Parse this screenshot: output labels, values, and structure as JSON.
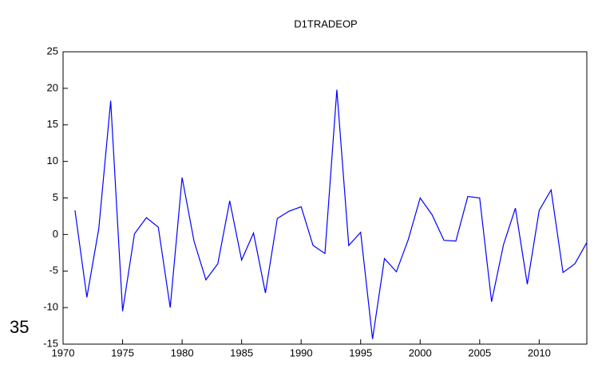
{
  "chart_data": {
    "type": "line",
    "title": "D1TRADEOP",
    "annotations": [
      "35"
    ],
    "x": [
      1971,
      1972,
      1973,
      1974,
      1975,
      1976,
      1977,
      1978,
      1979,
      1980,
      1981,
      1982,
      1983,
      1984,
      1985,
      1986,
      1987,
      1988,
      1989,
      1990,
      1991,
      1992,
      1993,
      1994,
      1995,
      1996,
      1997,
      1998,
      1999,
      2000,
      2001,
      2002,
      2003,
      2004,
      2005,
      2006,
      2007,
      2008,
      2009,
      2010,
      2011,
      2012,
      2013,
      2014
    ],
    "series": [
      {
        "name": "D1TRADEOP",
        "color": "#0000ff",
        "values": [
          3.3,
          -8.6,
          0.8,
          18.3,
          -10.5,
          0.1,
          2.3,
          1.0,
          -10.0,
          7.8,
          -0.9,
          -6.2,
          -4.0,
          4.6,
          -3.5,
          0.2,
          -8.0,
          2.2,
          3.2,
          3.8,
          -1.5,
          -2.6,
          19.8,
          -1.5,
          0.3,
          -14.3,
          -3.3,
          -5.1,
          -0.7,
          5.0,
          2.7,
          -0.8,
          -0.9,
          5.2,
          5.0,
          -9.2,
          -1.4,
          3.6,
          -6.8,
          3.3,
          6.1,
          -5.2,
          -4.0,
          -1.1
        ]
      }
    ],
    "xlim": [
      1970,
      2014
    ],
    "xticks": [
      1970,
      1975,
      1980,
      1985,
      1990,
      1995,
      2000,
      2005,
      2010
    ],
    "ylim": [
      -15,
      25
    ],
    "yticks": [
      -15,
      -10,
      -5,
      0,
      5,
      10,
      15,
      20,
      25
    ],
    "grid": false
  }
}
